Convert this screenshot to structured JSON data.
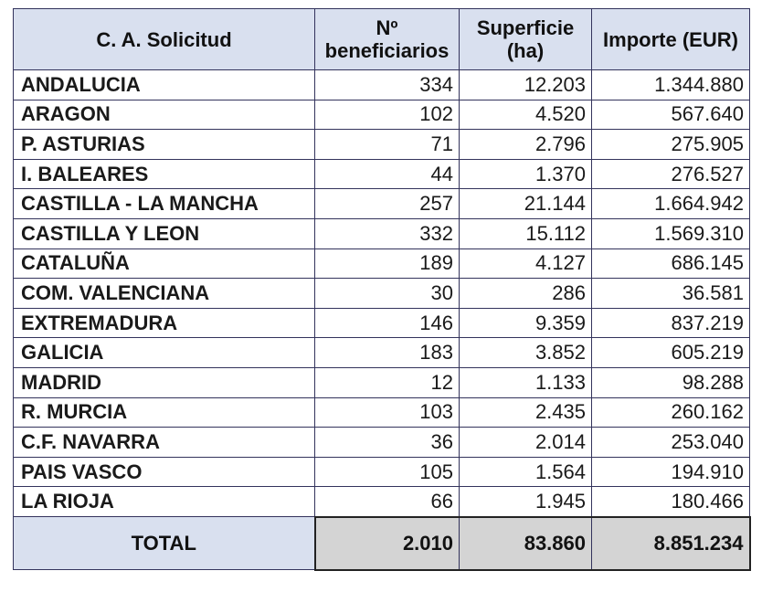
{
  "headers": {
    "region": "C. A. Solicitud",
    "beneficiaries": "Nº beneficiarios",
    "area": "Superficie (ha)",
    "amount": "Importe (EUR)"
  },
  "rows": [
    {
      "region": "ANDALUCIA",
      "beneficiaries": "334",
      "area": "12.203",
      "amount": "1.344.880"
    },
    {
      "region": "ARAGON",
      "beneficiaries": "102",
      "area": "4.520",
      "amount": "567.640"
    },
    {
      "region": "P. ASTURIAS",
      "beneficiaries": "71",
      "area": "2.796",
      "amount": "275.905"
    },
    {
      "region": "I. BALEARES",
      "beneficiaries": "44",
      "area": "1.370",
      "amount": "276.527"
    },
    {
      "region": "CASTILLA - LA MANCHA",
      "beneficiaries": "257",
      "area": "21.144",
      "amount": "1.664.942"
    },
    {
      "region": "CASTILLA Y LEON",
      "beneficiaries": "332",
      "area": "15.112",
      "amount": "1.569.310"
    },
    {
      "region": "CATALUÑA",
      "beneficiaries": "189",
      "area": "4.127",
      "amount": "686.145"
    },
    {
      "region": "COM. VALENCIANA",
      "beneficiaries": "30",
      "area": "286",
      "amount": "36.581"
    },
    {
      "region": "EXTREMADURA",
      "beneficiaries": "146",
      "area": "9.359",
      "amount": "837.219"
    },
    {
      "region": "GALICIA",
      "beneficiaries": "183",
      "area": "3.852",
      "amount": "605.219"
    },
    {
      "region": "MADRID",
      "beneficiaries": "12",
      "area": "1.133",
      "amount": "98.288"
    },
    {
      "region": "R. MURCIA",
      "beneficiaries": "103",
      "area": "2.435",
      "amount": "260.162"
    },
    {
      "region": "C.F. NAVARRA",
      "beneficiaries": "36",
      "area": "2.014",
      "amount": "253.040"
    },
    {
      "region": "PAIS VASCO",
      "beneficiaries": "105",
      "area": "1.564",
      "amount": "194.910"
    },
    {
      "region": "LA RIOJA",
      "beneficiaries": "66",
      "area": "1.945",
      "amount": "180.466"
    }
  ],
  "total": {
    "label": "TOTAL",
    "beneficiaries": "2.010",
    "area": "83.860",
    "amount": "8.851.234"
  }
}
